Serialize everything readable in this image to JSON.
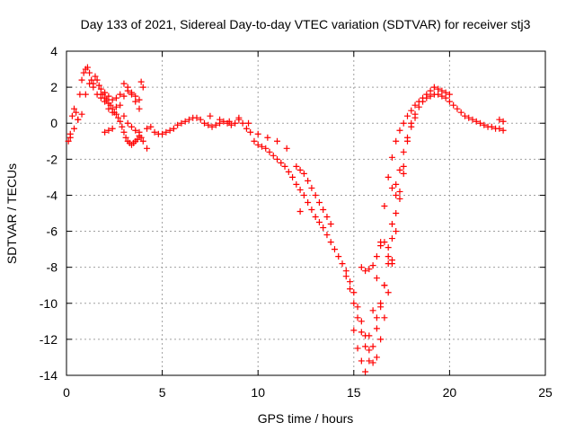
{
  "chart_data": {
    "type": "scatter",
    "title": "Day 133 of 2021, Sidereal Day-to-day VTEC variation (SDTVAR) for receiver stj3",
    "xlabel": "GPS time / hours",
    "ylabel": "SDTVAR / TECUs",
    "xlim": [
      0,
      25
    ],
    "ylim": [
      -14,
      4
    ],
    "xticks": [
      "0",
      "5",
      "10",
      "15",
      "20",
      "25"
    ],
    "yticks": [
      "4",
      "2",
      "0",
      "-2",
      "-4",
      "-6",
      "-8",
      "-10",
      "-12",
      "-14"
    ],
    "grid": true,
    "marker": "+",
    "color": "#ff0000",
    "series": [
      {
        "name": "stj3",
        "x": [
          0.1,
          0.2,
          0.3,
          0.4,
          0.5,
          0.6,
          0.7,
          0.8,
          0.9,
          1.0,
          1.1,
          1.2,
          1.3,
          1.4,
          1.5,
          1.6,
          1.7,
          1.8,
          1.9,
          2.0,
          2.1,
          2.2,
          2.3,
          2.4,
          2.5,
          2.6,
          2.7,
          2.8,
          2.9,
          3.0,
          3.1,
          3.2,
          3.3,
          3.4,
          3.5,
          3.6,
          3.7,
          3.8,
          3.9,
          4.0,
          4.2,
          4.4,
          4.6,
          4.8,
          5.0,
          5.2,
          5.4,
          5.6,
          5.8,
          6.0,
          6.2,
          6.4,
          6.6,
          6.8,
          7.0,
          7.2,
          7.4,
          7.6,
          7.8,
          8.0,
          8.2,
          8.4,
          8.6,
          8.8,
          9.0,
          9.2,
          9.4,
          9.6,
          9.8,
          10.0,
          10.2,
          10.4,
          10.6,
          10.8,
          11.0,
          11.2,
          11.4,
          11.6,
          11.8,
          12.0,
          12.2,
          12.4,
          12.6,
          12.8,
          13.0,
          13.2,
          13.4,
          13.6,
          13.8,
          14.0,
          14.2,
          14.4,
          14.6,
          14.8,
          15.0,
          15.2,
          15.4,
          15.6,
          15.8,
          16.0,
          16.2,
          16.4,
          16.6,
          16.8,
          17.0,
          17.2,
          17.4,
          17.6,
          17.8,
          18.0,
          18.2,
          18.4,
          18.6,
          18.8,
          19.0,
          19.2,
          19.4,
          19.6,
          19.8,
          20.0,
          20.2,
          20.4,
          20.6,
          20.8,
          21.0,
          21.2,
          21.4,
          21.6,
          21.8,
          22.0,
          22.2,
          22.4,
          22.6,
          22.8,
          0.2,
          0.4,
          0.6,
          0.8,
          1.0,
          1.2,
          1.4,
          1.6,
          1.8,
          2.0,
          2.2,
          2.4,
          2.6,
          2.8,
          3.0,
          3.2,
          3.4,
          3.6,
          3.8,
          1.8,
          2.0,
          2.2,
          2.4,
          2.6,
          2.8,
          3.0,
          3.2,
          3.4,
          3.6,
          3.8,
          3.0,
          3.2,
          3.4,
          3.6,
          3.8,
          2.0,
          2.2,
          2.4,
          15.4,
          15.6,
          15.8,
          16.0,
          16.2,
          16.4,
          16.6,
          16.8,
          17.0,
          14.6,
          14.8,
          15.0,
          15.2,
          15.4,
          15.6,
          15.8,
          16.0,
          16.2,
          16.4,
          16.6,
          16.8,
          17.0,
          17.2,
          17.4,
          17.6,
          17.8,
          18.0,
          18.2,
          18.4,
          18.6,
          18.8,
          19.0,
          15.0,
          15.2,
          15.4,
          15.6,
          15.8,
          16.0,
          16.2,
          16.4,
          16.6,
          16.8,
          17.0,
          17.2,
          17.4,
          17.6,
          17.8,
          18.0,
          18.2,
          16.2,
          16.4,
          16.6,
          16.8,
          17.0,
          17.2,
          17.4,
          17.6,
          7.5,
          8.0,
          8.5,
          9.0,
          9.5,
          10.0,
          10.5,
          11.0,
          11.5,
          12.0,
          12.2,
          12.4,
          12.6,
          12.8,
          13.0,
          13.2,
          13.4,
          13.6,
          13.8,
          3.9,
          4.0,
          4.2,
          12.2,
          17.0,
          17.2,
          19.2,
          19.4,
          19.6,
          19.8,
          20.0,
          22.6,
          22.8
        ],
        "y": [
          -1.0,
          -0.8,
          0.4,
          0.8,
          0.6,
          0.2,
          1.6,
          2.4,
          2.8,
          3.0,
          3.1,
          2.8,
          2.4,
          2.2,
          2.6,
          2.4,
          2.1,
          1.9,
          1.6,
          1.4,
          1.3,
          1.1,
          1.0,
          0.8,
          0.6,
          0.5,
          0.3,
          0.1,
          -0.2,
          -0.5,
          -0.8,
          -1.0,
          -1.1,
          -1.2,
          -1.1,
          -1.0,
          -0.9,
          -0.7,
          -0.8,
          -1.0,
          -0.3,
          -0.2,
          -0.5,
          -0.6,
          -0.6,
          -0.5,
          -0.4,
          -0.3,
          -0.1,
          0.0,
          0.1,
          0.2,
          0.3,
          0.3,
          0.2,
          0.0,
          -0.1,
          -0.2,
          -0.1,
          0.0,
          0.1,
          0.0,
          -0.1,
          0.0,
          0.2,
          0.0,
          -0.3,
          -0.5,
          -1.0,
          -1.2,
          -1.3,
          -1.4,
          -1.6,
          -1.8,
          -2.0,
          -2.2,
          -2.4,
          -2.7,
          -3.0,
          -3.4,
          -3.7,
          -4.0,
          -4.4,
          -4.8,
          -5.2,
          -5.5,
          -5.8,
          -6.2,
          -6.6,
          -7.0,
          -7.4,
          -7.8,
          -8.2,
          -8.8,
          -9.4,
          -10.2,
          -11.0,
          -11.8,
          -12.6,
          -13.3,
          -13.0,
          -12.0,
          -10.8,
          -9.4,
          -7.8,
          -6.0,
          -4.2,
          -2.4,
          -1.0,
          0.0,
          0.5,
          0.9,
          1.2,
          1.4,
          1.5,
          1.6,
          1.6,
          1.5,
          1.4,
          1.2,
          1.0,
          0.8,
          0.6,
          0.4,
          0.3,
          0.2,
          0.1,
          0.0,
          -0.1,
          -0.2,
          -0.2,
          -0.3,
          -0.3,
          -0.4,
          -0.6,
          -0.3,
          0.2,
          0.5,
          1.6,
          2.2,
          2.0,
          1.6,
          1.4,
          1.2,
          0.8,
          0.6,
          0.9,
          1.0,
          0.4,
          0.0,
          -0.2,
          -0.4,
          -0.5,
          1.6,
          1.7,
          1.5,
          1.3,
          1.4,
          1.6,
          1.5,
          1.8,
          1.7,
          1.5,
          1.3,
          2.2,
          2.0,
          1.6,
          1.2,
          0.8,
          -0.5,
          -0.4,
          -0.3,
          -8.0,
          -8.2,
          -8.1,
          -7.9,
          -7.4,
          -6.8,
          -6.6,
          -6.9,
          -7.6,
          -8.5,
          -9.2,
          -10.0,
          -10.8,
          -11.6,
          -12.4,
          -11.8,
          -10.4,
          -8.6,
          -6.6,
          -4.6,
          -3.0,
          -1.9,
          -1.0,
          -0.4,
          0.0,
          0.4,
          0.7,
          1.0,
          1.2,
          1.4,
          1.6,
          1.8,
          -11.5,
          -12.5,
          -13.2,
          -13.8,
          -13.2,
          -12.4,
          -11.4,
          -10.2,
          -9.0,
          -7.4,
          -5.6,
          -4.0,
          -2.6,
          -1.6,
          -0.8,
          -0.2,
          0.3,
          -10.8,
          -10.0,
          -9.0,
          -7.8,
          -6.4,
          -5.0,
          -3.8,
          -2.8,
          0.4,
          0.2,
          0.1,
          0.3,
          0.0,
          -0.6,
          -0.8,
          -1.0,
          -1.4,
          -2.4,
          -2.6,
          -2.8,
          -3.2,
          -3.6,
          -4.0,
          -4.4,
          -4.8,
          -5.2,
          -5.6,
          2.3,
          2.0,
          -1.4,
          -4.9,
          -3.6,
          -3.4,
          2.0,
          1.9,
          1.8,
          1.7,
          1.6,
          0.2,
          0.1
        ]
      }
    ]
  }
}
